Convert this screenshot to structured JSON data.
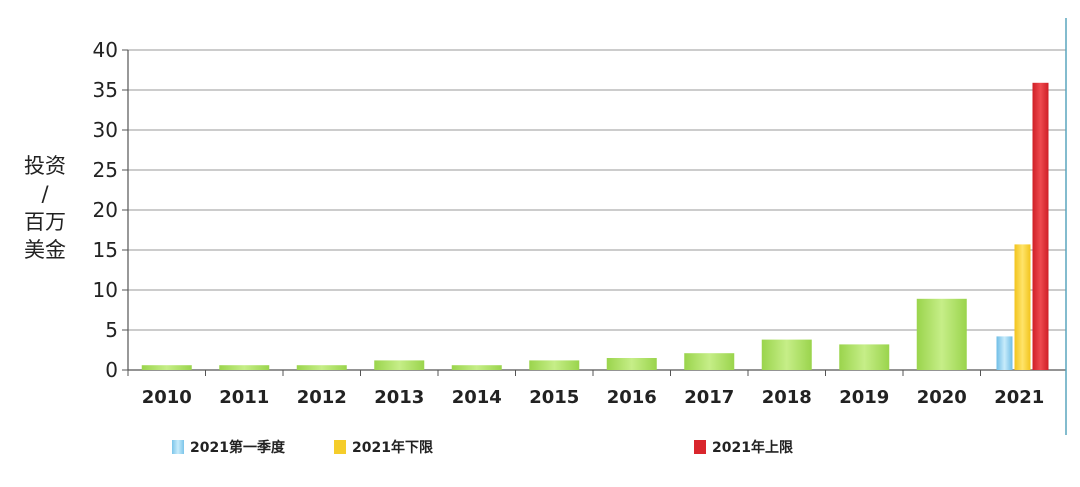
{
  "chart_data": {
    "type": "bar",
    "ylabel": [
      "投资",
      "/",
      "百万",
      "美金"
    ],
    "ylim": [
      0,
      40
    ],
    "yticks": [
      0,
      5,
      10,
      15,
      20,
      25,
      30,
      35,
      40
    ],
    "grid": true,
    "categories": [
      "2010",
      "2011",
      "2012",
      "2013",
      "2014",
      "2015",
      "2016",
      "2017",
      "2018",
      "2019",
      "2020",
      "2021"
    ],
    "values": [
      0.6,
      0.6,
      0.6,
      1.2,
      0.6,
      1.2,
      1.5,
      2.1,
      3.8,
      3.2,
      8.9,
      null
    ],
    "bar_color": "#a8dd5e",
    "series_2021": [
      {
        "name": "2021第一季度",
        "value": 4.2,
        "color": "#7cc5ea"
      },
      {
        "name": "2021年下限",
        "value": 15.7,
        "color": "#f5cd2a"
      },
      {
        "name": "2021年上限",
        "value": 35.9,
        "color": "#d9262c"
      }
    ],
    "legend": [
      "2021第一季度",
      "2021年下限",
      "2021年上限"
    ],
    "legend_position": "bottom"
  }
}
